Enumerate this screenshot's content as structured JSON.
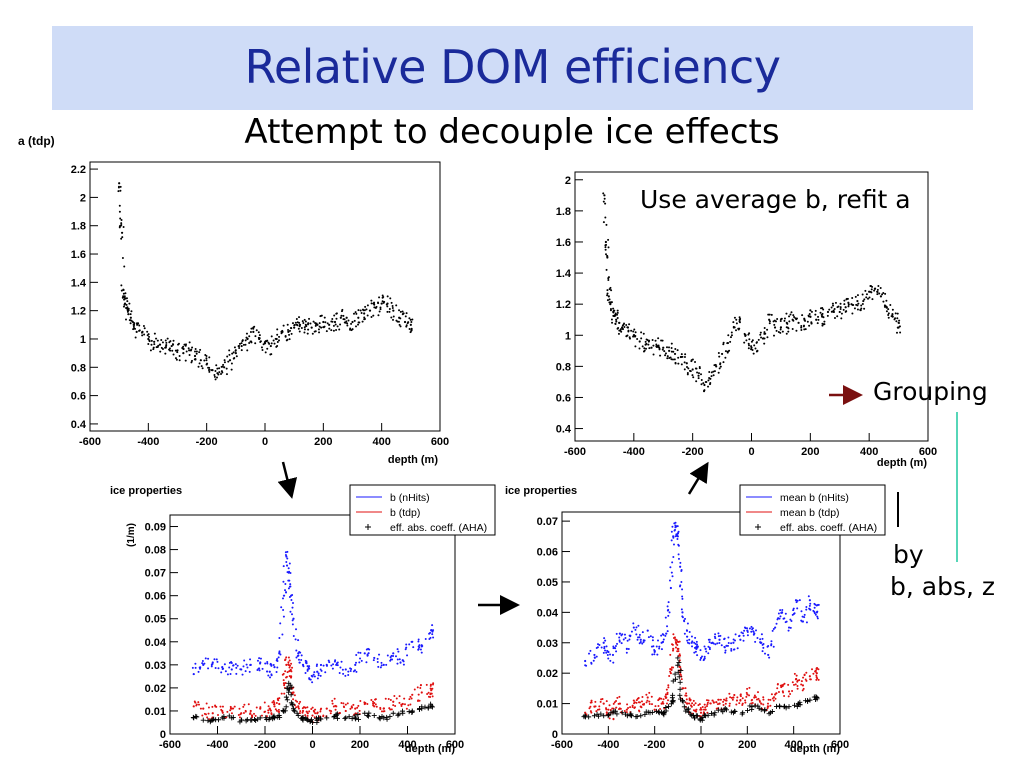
{
  "slide": {
    "title": "Relative DOM efficiency",
    "subtitle": "Attempt to decouple ice effects",
    "note_average": "Use average b, refit a",
    "note_grouping": "Grouping",
    "note_by": "by",
    "note_by2": "b, abs, z",
    "colors": {
      "title": "#1a2a9a",
      "title_bg": "#cfdcf7",
      "arrow_red": "#7a1010",
      "line_teal": "#1ec9a0"
    }
  },
  "chart_data": [
    {
      "id": "a-tdp",
      "type": "scatter",
      "title": "a (tdp)",
      "xlabel": "depth (m)",
      "xlim": [
        -600,
        600
      ],
      "ylim": [
        0.35,
        2.25
      ],
      "xticks": [
        -600,
        -400,
        -200,
        0,
        200,
        400,
        600
      ],
      "yticks": [
        0.4,
        0.6,
        0.8,
        1,
        1.2,
        1.4,
        1.6,
        1.8,
        2,
        2.2
      ],
      "series": [
        {
          "color": "#000000",
          "x": [
            -500,
            -495,
            -490,
            -485,
            -480,
            -470,
            -460,
            -450,
            -440,
            -420,
            -400,
            -380,
            -360,
            -340,
            -320,
            -300,
            -280,
            -260,
            -240,
            -220,
            -200,
            -180,
            -160,
            -140,
            -120,
            -100,
            -80,
            -60,
            -40,
            -20,
            0,
            20,
            40,
            60,
            80,
            100,
            120,
            140,
            160,
            180,
            200,
            220,
            240,
            260,
            280,
            300,
            320,
            340,
            360,
            380,
            400,
            420,
            440,
            460,
            480,
            500
          ],
          "y": [
            2.1,
            1.8,
            1.75,
            1.3,
            1.25,
            1.2,
            1.15,
            1.1,
            1.05,
            1.05,
            1.0,
            0.98,
            0.96,
            0.94,
            0.95,
            0.92,
            0.9,
            0.92,
            0.88,
            0.85,
            0.82,
            0.78,
            0.75,
            0.8,
            0.85,
            0.9,
            0.95,
            1.0,
            1.05,
            1.0,
            0.97,
            0.95,
            1.0,
            1.05,
            1.05,
            1.08,
            1.1,
            1.1,
            1.08,
            1.1,
            1.12,
            1.1,
            1.12,
            1.15,
            1.15,
            1.12,
            1.15,
            1.18,
            1.2,
            1.22,
            1.25,
            1.25,
            1.2,
            1.15,
            1.12,
            1.1
          ]
        }
      ]
    },
    {
      "id": "a-refit",
      "type": "scatter",
      "title": "",
      "xlabel": "depth (m)",
      "xlim": [
        -600,
        600
      ],
      "ylim": [
        0.32,
        2.05
      ],
      "xticks": [
        -600,
        -400,
        -200,
        0,
        200,
        400,
        600
      ],
      "yticks": [
        0.4,
        0.6,
        0.8,
        1,
        1.2,
        1.4,
        1.6,
        1.8,
        2
      ],
      "series": [
        {
          "color": "#000000",
          "x": [
            -500,
            -495,
            -490,
            -485,
            -480,
            -470,
            -460,
            -450,
            -440,
            -420,
            -400,
            -380,
            -360,
            -340,
            -320,
            -300,
            -280,
            -260,
            -240,
            -220,
            -200,
            -180,
            -160,
            -140,
            -120,
            -100,
            -80,
            -60,
            -40,
            -20,
            0,
            20,
            40,
            60,
            80,
            100,
            120,
            140,
            160,
            180,
            200,
            220,
            240,
            260,
            280,
            300,
            320,
            340,
            360,
            380,
            400,
            420,
            440,
            460,
            480,
            500
          ],
          "y": [
            1.9,
            1.6,
            1.5,
            1.25,
            1.2,
            1.15,
            1.1,
            1.08,
            1.05,
            1.05,
            1.0,
            0.96,
            0.94,
            0.92,
            0.93,
            0.92,
            0.9,
            0.88,
            0.86,
            0.82,
            0.78,
            0.74,
            0.68,
            0.72,
            0.8,
            0.88,
            0.95,
            1.05,
            1.1,
            1.0,
            0.92,
            0.9,
            0.98,
            1.1,
            1.05,
            1.05,
            1.08,
            1.1,
            1.08,
            1.1,
            1.12,
            1.1,
            1.12,
            1.15,
            1.15,
            1.15,
            1.18,
            1.2,
            1.22,
            1.22,
            1.28,
            1.3,
            1.25,
            1.18,
            1.12,
            1.05
          ]
        }
      ]
    },
    {
      "id": "ice-raw",
      "type": "scatter",
      "title": "ice properties",
      "ylabel": "(1/m)",
      "xlabel": "depth (m)",
      "xlim": [
        -600,
        600
      ],
      "ylim": [
        0,
        0.095
      ],
      "xticks": [
        -600,
        -400,
        -200,
        0,
        200,
        400,
        600
      ],
      "yticks": [
        0,
        0.01,
        0.02,
        0.03,
        0.04,
        0.05,
        0.06,
        0.07,
        0.08,
        0.09
      ],
      "series": [
        {
          "name": "b (nHits)",
          "color": "#1a1aff",
          "x": [
            -500,
            -460,
            -420,
            -380,
            -340,
            -300,
            -260,
            -220,
            -180,
            -160,
            -140,
            -120,
            -110,
            -100,
            -90,
            -80,
            -60,
            -40,
            -20,
            0,
            20,
            60,
            100,
            140,
            180,
            220,
            260,
            300,
            340,
            380,
            420,
            460,
            500
          ],
          "y": [
            0.026,
            0.03,
            0.031,
            0.029,
            0.028,
            0.028,
            0.03,
            0.031,
            0.027,
            0.029,
            0.035,
            0.06,
            0.077,
            0.07,
            0.06,
            0.05,
            0.035,
            0.03,
            0.028,
            0.025,
            0.027,
            0.03,
            0.03,
            0.028,
            0.03,
            0.035,
            0.033,
            0.03,
            0.035,
            0.032,
            0.04,
            0.038,
            0.045
          ]
        },
        {
          "name": "b (tdp)",
          "color": "#e01010",
          "x": [
            -500,
            -460,
            -420,
            -380,
            -340,
            -300,
            -260,
            -220,
            -180,
            -160,
            -140,
            -120,
            -110,
            -100,
            -90,
            -80,
            -60,
            -40,
            -20,
            0,
            20,
            60,
            100,
            140,
            180,
            220,
            260,
            300,
            340,
            380,
            420,
            460,
            500
          ],
          "y": [
            0.012,
            0.011,
            0.009,
            0.01,
            0.011,
            0.009,
            0.01,
            0.011,
            0.011,
            0.012,
            0.013,
            0.022,
            0.03,
            0.03,
            0.025,
            0.018,
            0.012,
            0.01,
            0.009,
            0.008,
            0.009,
            0.011,
            0.012,
            0.01,
            0.011,
            0.013,
            0.012,
            0.011,
            0.014,
            0.013,
            0.017,
            0.018,
            0.019
          ]
        },
        {
          "name": "eff. abs. coeff. (AHA)",
          "color": "#000000",
          "marker": "+",
          "x": [
            -500,
            -460,
            -420,
            -380,
            -340,
            -300,
            -260,
            -220,
            -180,
            -160,
            -140,
            -120,
            -110,
            -100,
            -90,
            -80,
            -60,
            -40,
            -20,
            0,
            20,
            60,
            100,
            140,
            180,
            220,
            260,
            300,
            340,
            380,
            420,
            460,
            500
          ],
          "y": [
            0.007,
            0.006,
            0.006,
            0.007,
            0.007,
            0.006,
            0.006,
            0.007,
            0.007,
            0.007,
            0.008,
            0.01,
            0.016,
            0.022,
            0.017,
            0.011,
            0.008,
            0.006,
            0.006,
            0.005,
            0.006,
            0.007,
            0.008,
            0.007,
            0.007,
            0.009,
            0.008,
            0.007,
            0.009,
            0.009,
            0.01,
            0.011,
            0.012
          ]
        }
      ]
    },
    {
      "id": "ice-mean",
      "type": "scatter",
      "title": "ice properties",
      "ylabel": "",
      "xlabel": "depth (m)",
      "xlim": [
        -600,
        600
      ],
      "ylim": [
        0,
        0.073
      ],
      "xticks": [
        -600,
        -400,
        -200,
        0,
        200,
        400,
        600
      ],
      "yticks": [
        0,
        0.01,
        0.02,
        0.03,
        0.04,
        0.05,
        0.06,
        0.07
      ],
      "series": [
        {
          "name": "mean b (nHits)",
          "color": "#1a1aff",
          "x": [
            -500,
            -460,
            -420,
            -400,
            -380,
            -350,
            -320,
            -290,
            -260,
            -230,
            -200,
            -170,
            -150,
            -130,
            -120,
            -110,
            -100,
            -90,
            -80,
            -60,
            -40,
            -20,
            0,
            20,
            50,
            80,
            110,
            140,
            170,
            200,
            230,
            260,
            290,
            320,
            350,
            380,
            410,
            440,
            470,
            500
          ],
          "y": [
            0.024,
            0.026,
            0.03,
            0.027,
            0.026,
            0.033,
            0.028,
            0.035,
            0.031,
            0.034,
            0.027,
            0.03,
            0.033,
            0.048,
            0.065,
            0.068,
            0.065,
            0.055,
            0.04,
            0.032,
            0.03,
            0.028,
            0.025,
            0.028,
            0.03,
            0.031,
            0.029,
            0.03,
            0.031,
            0.034,
            0.033,
            0.03,
            0.026,
            0.035,
            0.04,
            0.035,
            0.044,
            0.037,
            0.044,
            0.04
          ]
        },
        {
          "name": "mean b (tdp)",
          "color": "#e01010",
          "x": [
            -500,
            -460,
            -420,
            -400,
            -380,
            -350,
            -320,
            -290,
            -260,
            -230,
            -200,
            -170,
            -150,
            -130,
            -120,
            -110,
            -100,
            -90,
            -80,
            -60,
            -40,
            -20,
            0,
            20,
            50,
            80,
            110,
            140,
            170,
            200,
            230,
            260,
            290,
            320,
            350,
            380,
            410,
            440,
            470,
            500
          ],
          "y": [
            0.007,
            0.009,
            0.01,
            0.008,
            0.007,
            0.01,
            0.008,
            0.011,
            0.009,
            0.012,
            0.008,
            0.01,
            0.012,
            0.02,
            0.028,
            0.031,
            0.028,
            0.022,
            0.015,
            0.01,
            0.009,
            0.008,
            0.007,
            0.008,
            0.011,
            0.01,
            0.011,
            0.012,
            0.011,
            0.013,
            0.012,
            0.01,
            0.009,
            0.013,
            0.016,
            0.014,
            0.018,
            0.016,
            0.019,
            0.02
          ]
        },
        {
          "name": "eff. abs. coeff. (AHA)",
          "color": "#000000",
          "marker": "+",
          "x": [
            -500,
            -460,
            -420,
            -380,
            -340,
            -300,
            -260,
            -220,
            -180,
            -160,
            -140,
            -120,
            -110,
            -100,
            -90,
            -80,
            -60,
            -40,
            -20,
            0,
            20,
            60,
            100,
            140,
            180,
            220,
            260,
            300,
            340,
            380,
            420,
            460,
            500
          ],
          "y": [
            0.006,
            0.006,
            0.006,
            0.007,
            0.007,
            0.006,
            0.006,
            0.007,
            0.007,
            0.007,
            0.009,
            0.011,
            0.018,
            0.025,
            0.017,
            0.011,
            0.008,
            0.006,
            0.006,
            0.005,
            0.006,
            0.007,
            0.008,
            0.007,
            0.007,
            0.009,
            0.008,
            0.007,
            0.009,
            0.009,
            0.01,
            0.011,
            0.012
          ]
        }
      ]
    }
  ]
}
